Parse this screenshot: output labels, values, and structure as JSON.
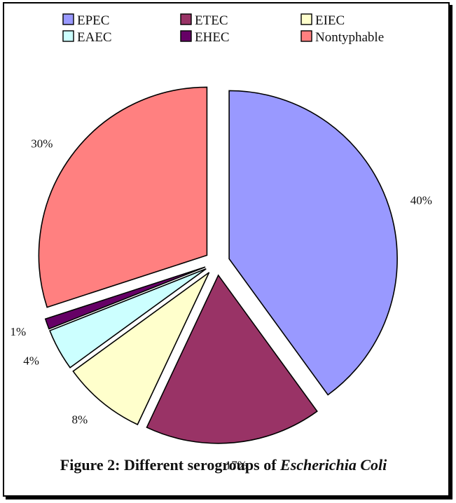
{
  "chart_data": {
    "type": "pie",
    "slices": [
      {
        "label": "EPEC",
        "value": 40,
        "display": "40%",
        "color": "#9999ff"
      },
      {
        "label": "ETEC",
        "value": 17,
        "display": "17%",
        "color": "#993366"
      },
      {
        "label": "EIEC",
        "value": 8,
        "display": "8%",
        "color": "#ffffcc"
      },
      {
        "label": "EAEC",
        "value": 4,
        "display": "4%",
        "color": "#ccffff"
      },
      {
        "label": "EHEC",
        "value": 1,
        "display": "1%",
        "color": "#660066"
      },
      {
        "label": "Nontyphable",
        "value": 30,
        "display": "30%",
        "color": "#ff8080"
      }
    ],
    "legend_position": "top",
    "exploded": true
  },
  "caption": {
    "prefix": "Figure 2: Different serogroups of ",
    "emphasis": "Escherichia Coli"
  }
}
